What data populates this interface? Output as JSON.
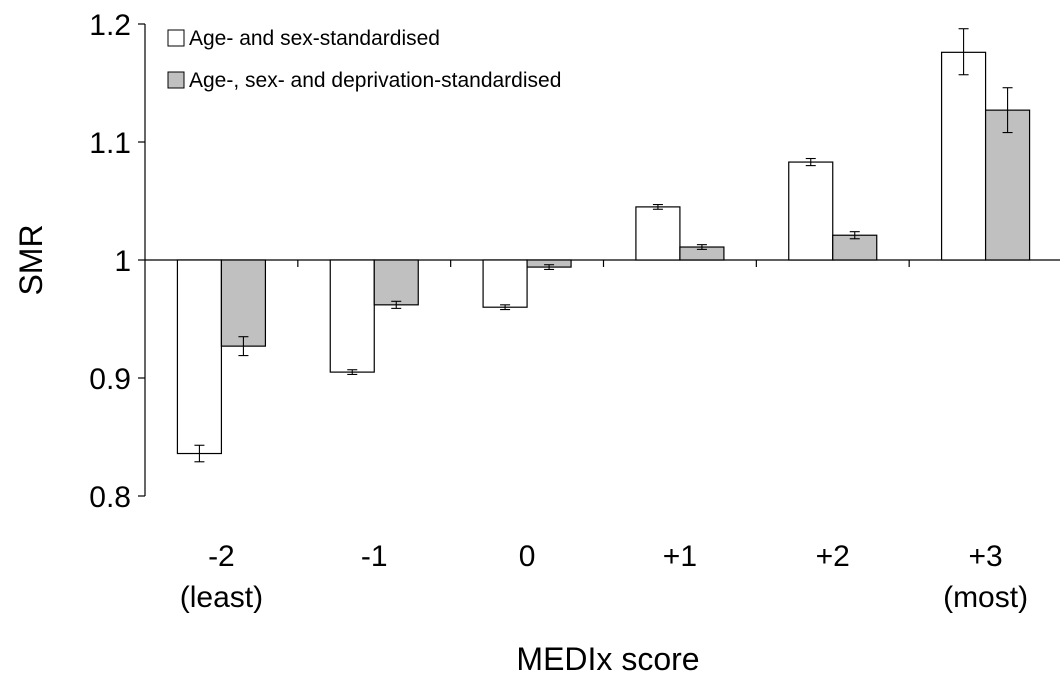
{
  "chart_data": {
    "type": "bar",
    "title": "",
    "xlabel": "MEDIx score",
    "ylabel": "SMR",
    "ylim": [
      0.8,
      1.2
    ],
    "yticks": [
      "0.8",
      "0.9",
      "1",
      "1.1",
      "1.2"
    ],
    "baseline": 1.0,
    "grid": false,
    "legend_position": "top-left",
    "categories": [
      [
        "-2",
        "(least)"
      ],
      [
        "-1",
        ""
      ],
      [
        "0",
        ""
      ],
      [
        "+1",
        ""
      ],
      [
        "+2",
        ""
      ],
      [
        "+3",
        "(most)"
      ]
    ],
    "series": [
      {
        "name": "Age- and sex-standardised",
        "color": "#ffffff",
        "values": [
          0.836,
          0.905,
          0.96,
          1.045,
          1.083,
          1.176
        ],
        "error_low": [
          0.829,
          0.903,
          0.958,
          1.043,
          1.08,
          1.157
        ],
        "error_high": [
          0.843,
          0.907,
          0.962,
          1.047,
          1.086,
          1.196
        ]
      },
      {
        "name": "Age-, sex- and deprivation-standardised",
        "color": "#c0c0c0",
        "values": [
          0.927,
          0.962,
          0.994,
          1.011,
          1.021,
          1.127
        ],
        "error_low": [
          0.919,
          0.959,
          0.992,
          1.009,
          1.018,
          1.108
        ],
        "error_high": [
          0.935,
          0.965,
          0.996,
          1.013,
          1.024,
          1.146
        ]
      }
    ]
  }
}
